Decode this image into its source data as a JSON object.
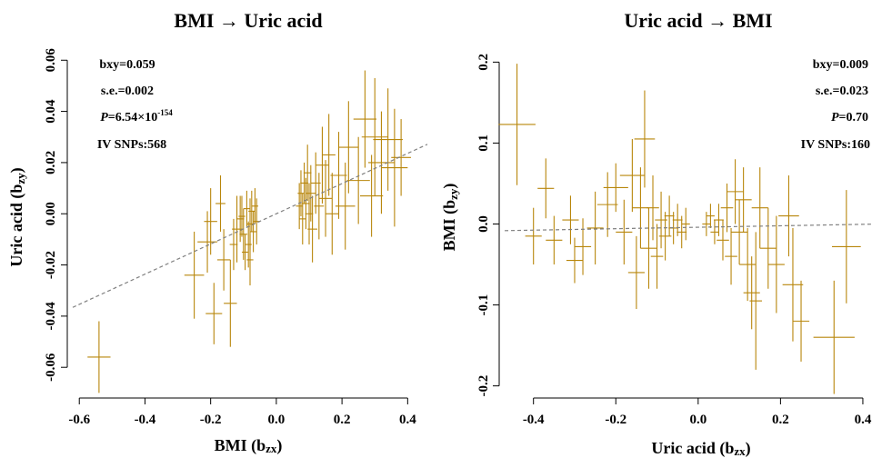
{
  "chart_data": [
    {
      "type": "scatter",
      "title": "BMI → Uric acid",
      "xlabel": "BMI (b",
      "xlabel_sub": "zx",
      "xlabel_end": ")",
      "ylabel": "Uric acid (b",
      "ylabel_sub": "zy",
      "ylabel_end": ")",
      "xlim": [
        -0.62,
        0.46
      ],
      "ylim": [
        -0.072,
        0.064
      ],
      "xticks": [
        -0.6,
        -0.4,
        -0.2,
        0.0,
        0.2,
        0.4
      ],
      "xtick_labels": [
        "-0.6",
        "-0.4",
        "-0.2",
        "0.0",
        "0.2",
        "0.4"
      ],
      "yticks": [
        -0.06,
        -0.04,
        -0.02,
        0.0,
        0.02,
        0.04,
        0.06
      ],
      "ytick_labels": [
        "-0.06",
        "-0.04",
        "-0.02",
        "0.00",
        "0.02",
        "0.04",
        "0.06"
      ],
      "stats": {
        "bxy": "bxy=0.059",
        "se": "s.e.=0.002",
        "p_label": "P",
        "p_value": "=6.54×10",
        "p_exp": "-154",
        "snps": "IV SNPs:568"
      },
      "fit_line": {
        "intercept": 0.0,
        "slope": 0.059
      },
      "point_color": "#b8860b",
      "fit_color": "#808080",
      "points": [
        {
          "x": -0.54,
          "y": -0.056,
          "xe": 0.035,
          "ye": 0.014
        },
        {
          "x": -0.25,
          "y": -0.024,
          "xe": 0.03,
          "ye": 0.017
        },
        {
          "x": -0.21,
          "y": -0.011,
          "xe": 0.03,
          "ye": 0.012
        },
        {
          "x": -0.19,
          "y": -0.039,
          "xe": 0.025,
          "ye": 0.012
        },
        {
          "x": -0.16,
          "y": -0.018,
          "xe": 0.02,
          "ye": 0.012
        },
        {
          "x": -0.14,
          "y": -0.035,
          "xe": 0.02,
          "ye": 0.017
        },
        {
          "x": -0.2,
          "y": -0.003,
          "xe": 0.02,
          "ye": 0.013
        },
        {
          "x": -0.17,
          "y": 0.004,
          "xe": 0.015,
          "ye": 0.011
        },
        {
          "x": -0.12,
          "y": -0.006,
          "xe": 0.015,
          "ye": 0.013
        },
        {
          "x": -0.11,
          "y": -0.002,
          "xe": 0.012,
          "ye": 0.009
        },
        {
          "x": -0.1,
          "y": -0.008,
          "xe": 0.012,
          "ye": 0.01
        },
        {
          "x": -0.09,
          "y": 0.002,
          "xe": 0.01,
          "ye": 0.007
        },
        {
          "x": -0.085,
          "y": -0.012,
          "xe": 0.01,
          "ye": 0.009
        },
        {
          "x": -0.08,
          "y": -0.004,
          "xe": 0.01,
          "ye": 0.01
        },
        {
          "x": -0.075,
          "y": 0.001,
          "xe": 0.01,
          "ye": 0.008
        },
        {
          "x": -0.07,
          "y": -0.007,
          "xe": 0.01,
          "ye": 0.008
        },
        {
          "x": -0.095,
          "y": -0.015,
          "xe": 0.01,
          "ye": 0.007
        },
        {
          "x": -0.105,
          "y": -0.001,
          "xe": 0.01,
          "ye": 0.008
        },
        {
          "x": -0.13,
          "y": -0.012,
          "xe": 0.012,
          "ye": 0.01
        },
        {
          "x": -0.08,
          "y": -0.018,
          "xe": 0.01,
          "ye": 0.01
        },
        {
          "x": -0.06,
          "y": -0.003,
          "xe": 0.01,
          "ye": 0.009
        },
        {
          "x": -0.065,
          "y": 0.003,
          "xe": 0.01,
          "ye": 0.007
        },
        {
          "x": 0.07,
          "y": 0.003,
          "xe": 0.01,
          "ye": 0.009
        },
        {
          "x": 0.075,
          "y": 0.008,
          "xe": 0.01,
          "ye": 0.009
        },
        {
          "x": 0.08,
          "y": -0.002,
          "xe": 0.01,
          "ye": 0.01
        },
        {
          "x": 0.085,
          "y": 0.012,
          "xe": 0.012,
          "ye": 0.008
        },
        {
          "x": 0.09,
          "y": 0.004,
          "xe": 0.012,
          "ye": 0.01
        },
        {
          "x": 0.095,
          "y": 0.016,
          "xe": 0.012,
          "ye": 0.011
        },
        {
          "x": 0.1,
          "y": 0.0,
          "xe": 0.012,
          "ye": 0.012
        },
        {
          "x": 0.105,
          "y": 0.008,
          "xe": 0.015,
          "ye": 0.011
        },
        {
          "x": 0.11,
          "y": -0.006,
          "xe": 0.015,
          "ye": 0.013
        },
        {
          "x": 0.12,
          "y": 0.012,
          "xe": 0.015,
          "ye": 0.012
        },
        {
          "x": 0.13,
          "y": 0.003,
          "xe": 0.015,
          "ye": 0.013
        },
        {
          "x": 0.14,
          "y": 0.019,
          "xe": 0.02,
          "ye": 0.015
        },
        {
          "x": 0.15,
          "y": 0.006,
          "xe": 0.02,
          "ye": 0.015
        },
        {
          "x": 0.16,
          "y": 0.023,
          "xe": 0.02,
          "ye": 0.016
        },
        {
          "x": 0.17,
          "y": 0.0,
          "xe": 0.02,
          "ye": 0.016
        },
        {
          "x": 0.19,
          "y": 0.015,
          "xe": 0.025,
          "ye": 0.017
        },
        {
          "x": 0.21,
          "y": 0.003,
          "xe": 0.03,
          "ye": 0.017
        },
        {
          "x": 0.22,
          "y": 0.026,
          "xe": 0.03,
          "ye": 0.018
        },
        {
          "x": 0.25,
          "y": 0.013,
          "xe": 0.035,
          "ye": 0.017
        },
        {
          "x": 0.27,
          "y": 0.037,
          "xe": 0.035,
          "ye": 0.019
        },
        {
          "x": 0.29,
          "y": 0.007,
          "xe": 0.035,
          "ye": 0.016
        },
        {
          "x": 0.3,
          "y": 0.03,
          "xe": 0.04,
          "ye": 0.023
        },
        {
          "x": 0.32,
          "y": 0.02,
          "xe": 0.04,
          "ye": 0.02
        },
        {
          "x": 0.34,
          "y": 0.029,
          "xe": 0.045,
          "ye": 0.02
        },
        {
          "x": 0.36,
          "y": 0.018,
          "xe": 0.04,
          "ye": 0.023
        },
        {
          "x": 0.38,
          "y": 0.022,
          "xe": 0.03,
          "ye": 0.015
        }
      ]
    },
    {
      "type": "scatter",
      "title": "Uric acid → BMI",
      "xlabel": "Uric acid (b",
      "xlabel_sub": "zx",
      "xlabel_end": ")",
      "ylabel": "BMI  (b",
      "ylabel_sub": "zy",
      "ylabel_end": ")",
      "xlim": [
        -0.47,
        0.42
      ],
      "ylim": [
        -0.215,
        0.215
      ],
      "xticks": [
        -0.4,
        -0.2,
        0.0,
        0.2,
        0.4
      ],
      "xtick_labels": [
        "-0.4",
        "-0.2",
        "0.0",
        "0.2",
        "0.4"
      ],
      "yticks": [
        -0.2,
        -0.1,
        0.0,
        0.1,
        0.2
      ],
      "ytick_labels": [
        "-0.2",
        "-0.1",
        "0.0",
        "0.1",
        "0.2"
      ],
      "stats": {
        "bxy": "bxy=0.009",
        "se": "s.e.=0.023",
        "p_label": "P",
        "p_value": "=0.70",
        "p_exp": "",
        "snps": "IV SNPs:160"
      },
      "fit_line": {
        "intercept": -0.004,
        "slope": 0.009
      },
      "point_color": "#b8860b",
      "fit_color": "#808080",
      "points": [
        {
          "x": -0.44,
          "y": 0.123,
          "xe": 0.045,
          "ye": 0.075
        },
        {
          "x": -0.4,
          "y": -0.015,
          "xe": 0.02,
          "ye": 0.035
        },
        {
          "x": -0.37,
          "y": 0.044,
          "xe": 0.02,
          "ye": 0.037
        },
        {
          "x": -0.35,
          "y": -0.02,
          "xe": 0.02,
          "ye": 0.03
        },
        {
          "x": -0.31,
          "y": 0.005,
          "xe": 0.02,
          "ye": 0.03
        },
        {
          "x": -0.3,
          "y": -0.045,
          "xe": 0.02,
          "ye": 0.028
        },
        {
          "x": -0.28,
          "y": -0.028,
          "xe": 0.02,
          "ye": 0.035
        },
        {
          "x": -0.25,
          "y": -0.005,
          "xe": 0.02,
          "ye": 0.045
        },
        {
          "x": -0.22,
          "y": 0.024,
          "xe": 0.025,
          "ye": 0.04
        },
        {
          "x": -0.2,
          "y": 0.045,
          "xe": 0.03,
          "ye": 0.03
        },
        {
          "x": -0.18,
          "y": -0.01,
          "xe": 0.02,
          "ye": 0.04
        },
        {
          "x": -0.16,
          "y": 0.06,
          "xe": 0.03,
          "ye": 0.045
        },
        {
          "x": -0.15,
          "y": -0.06,
          "xe": 0.02,
          "ye": 0.045
        },
        {
          "x": -0.14,
          "y": 0.02,
          "xe": 0.02,
          "ye": 0.05
        },
        {
          "x": -0.13,
          "y": 0.105,
          "xe": 0.025,
          "ye": 0.06
        },
        {
          "x": -0.12,
          "y": -0.03,
          "xe": 0.02,
          "ye": 0.05
        },
        {
          "x": -0.11,
          "y": 0.02,
          "xe": 0.015,
          "ye": 0.04
        },
        {
          "x": -0.1,
          "y": -0.04,
          "xe": 0.015,
          "ye": 0.04
        },
        {
          "x": -0.09,
          "y": 0.005,
          "xe": 0.015,
          "ye": 0.035
        },
        {
          "x": -0.08,
          "y": -0.015,
          "xe": 0.015,
          "ye": 0.03
        },
        {
          "x": -0.07,
          "y": 0.01,
          "xe": 0.012,
          "ye": 0.025
        },
        {
          "x": -0.06,
          "y": -0.005,
          "xe": 0.012,
          "ye": 0.02
        },
        {
          "x": -0.05,
          "y": 0.005,
          "xe": 0.012,
          "ye": 0.02
        },
        {
          "x": -0.04,
          "y": -0.01,
          "xe": 0.012,
          "ye": 0.02
        },
        {
          "x": -0.03,
          "y": 0.0,
          "xe": 0.01,
          "ye": 0.02
        },
        {
          "x": 0.02,
          "y": 0.0,
          "xe": 0.01,
          "ye": 0.015
        },
        {
          "x": 0.03,
          "y": 0.01,
          "xe": 0.01,
          "ye": 0.015
        },
        {
          "x": 0.04,
          "y": -0.01,
          "xe": 0.01,
          "ye": 0.015
        },
        {
          "x": 0.05,
          "y": 0.005,
          "xe": 0.012,
          "ye": 0.02
        },
        {
          "x": 0.06,
          "y": -0.02,
          "xe": 0.015,
          "ye": 0.025
        },
        {
          "x": 0.07,
          "y": 0.02,
          "xe": 0.015,
          "ye": 0.03
        },
        {
          "x": 0.08,
          "y": -0.04,
          "xe": 0.015,
          "ye": 0.035
        },
        {
          "x": 0.09,
          "y": 0.04,
          "xe": 0.02,
          "ye": 0.04
        },
        {
          "x": 0.1,
          "y": -0.01,
          "xe": 0.02,
          "ye": 0.04
        },
        {
          "x": 0.11,
          "y": 0.03,
          "xe": 0.02,
          "ye": 0.04
        },
        {
          "x": 0.12,
          "y": -0.05,
          "xe": 0.02,
          "ye": 0.045
        },
        {
          "x": 0.13,
          "y": -0.085,
          "xe": 0.02,
          "ye": 0.045
        },
        {
          "x": 0.14,
          "y": -0.095,
          "xe": 0.015,
          "ye": 0.085
        },
        {
          "x": 0.15,
          "y": 0.02,
          "xe": 0.02,
          "ye": 0.05
        },
        {
          "x": 0.17,
          "y": -0.03,
          "xe": 0.02,
          "ye": 0.05
        },
        {
          "x": 0.19,
          "y": -0.05,
          "xe": 0.02,
          "ye": 0.06
        },
        {
          "x": 0.22,
          "y": 0.01,
          "xe": 0.025,
          "ye": 0.05
        },
        {
          "x": 0.23,
          "y": -0.075,
          "xe": 0.025,
          "ye": 0.07
        },
        {
          "x": 0.25,
          "y": -0.12,
          "xe": 0.02,
          "ye": 0.05
        },
        {
          "x": 0.33,
          "y": -0.14,
          "xe": 0.05,
          "ye": 0.07
        },
        {
          "x": 0.36,
          "y": -0.028,
          "xe": 0.035,
          "ye": 0.07
        }
      ]
    }
  ]
}
